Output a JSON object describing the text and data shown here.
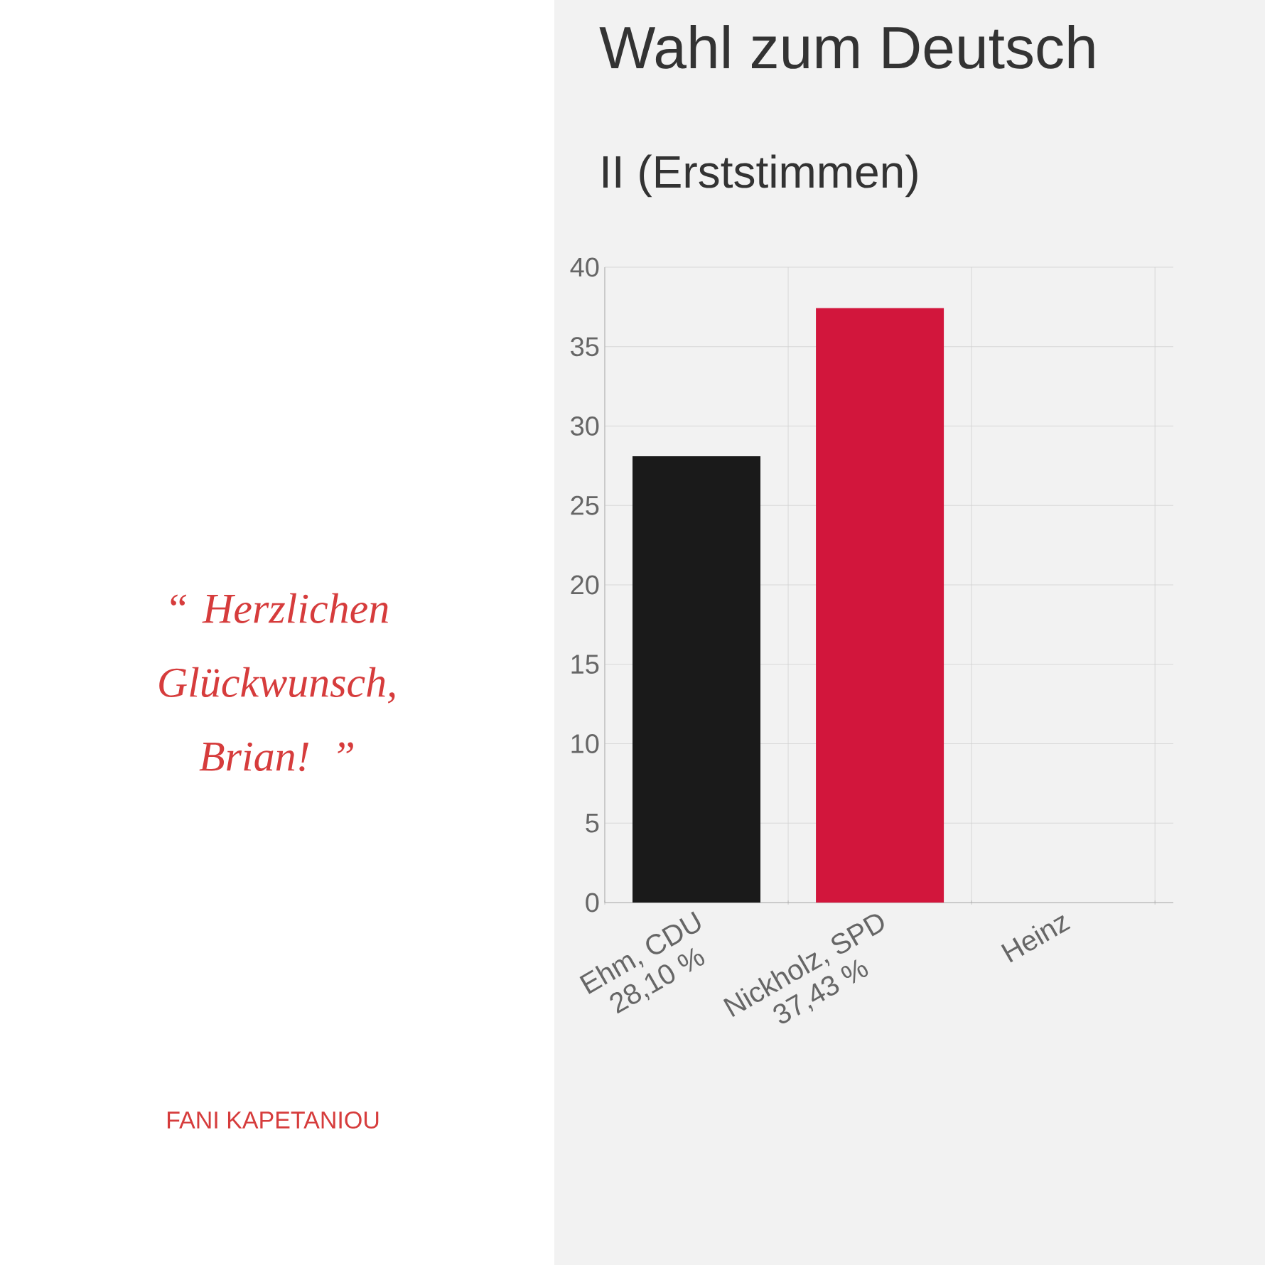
{
  "chart_data": {
    "type": "bar",
    "title": "Wahl zum Deutsch",
    "subtitle": "II (Erststimmen)",
    "categories": [
      "Ehm, CDU",
      "Nickholz, SPD",
      "Heinz"
    ],
    "values": [
      28.1,
      37.43,
      null
    ],
    "value_labels": [
      "28,10 %",
      "37,43 %",
      null
    ],
    "colors": [
      "#1a1a1a",
      "#d2163c",
      "#888888"
    ],
    "ylim": [
      0,
      40
    ],
    "yticks": [
      0,
      5,
      10,
      15,
      20,
      25,
      30,
      35,
      40
    ],
    "grid": true,
    "annotations": [
      "“ Herzlichen Glückwunsch, Brian! ”",
      "FANI KAPETANIOU"
    ]
  }
}
